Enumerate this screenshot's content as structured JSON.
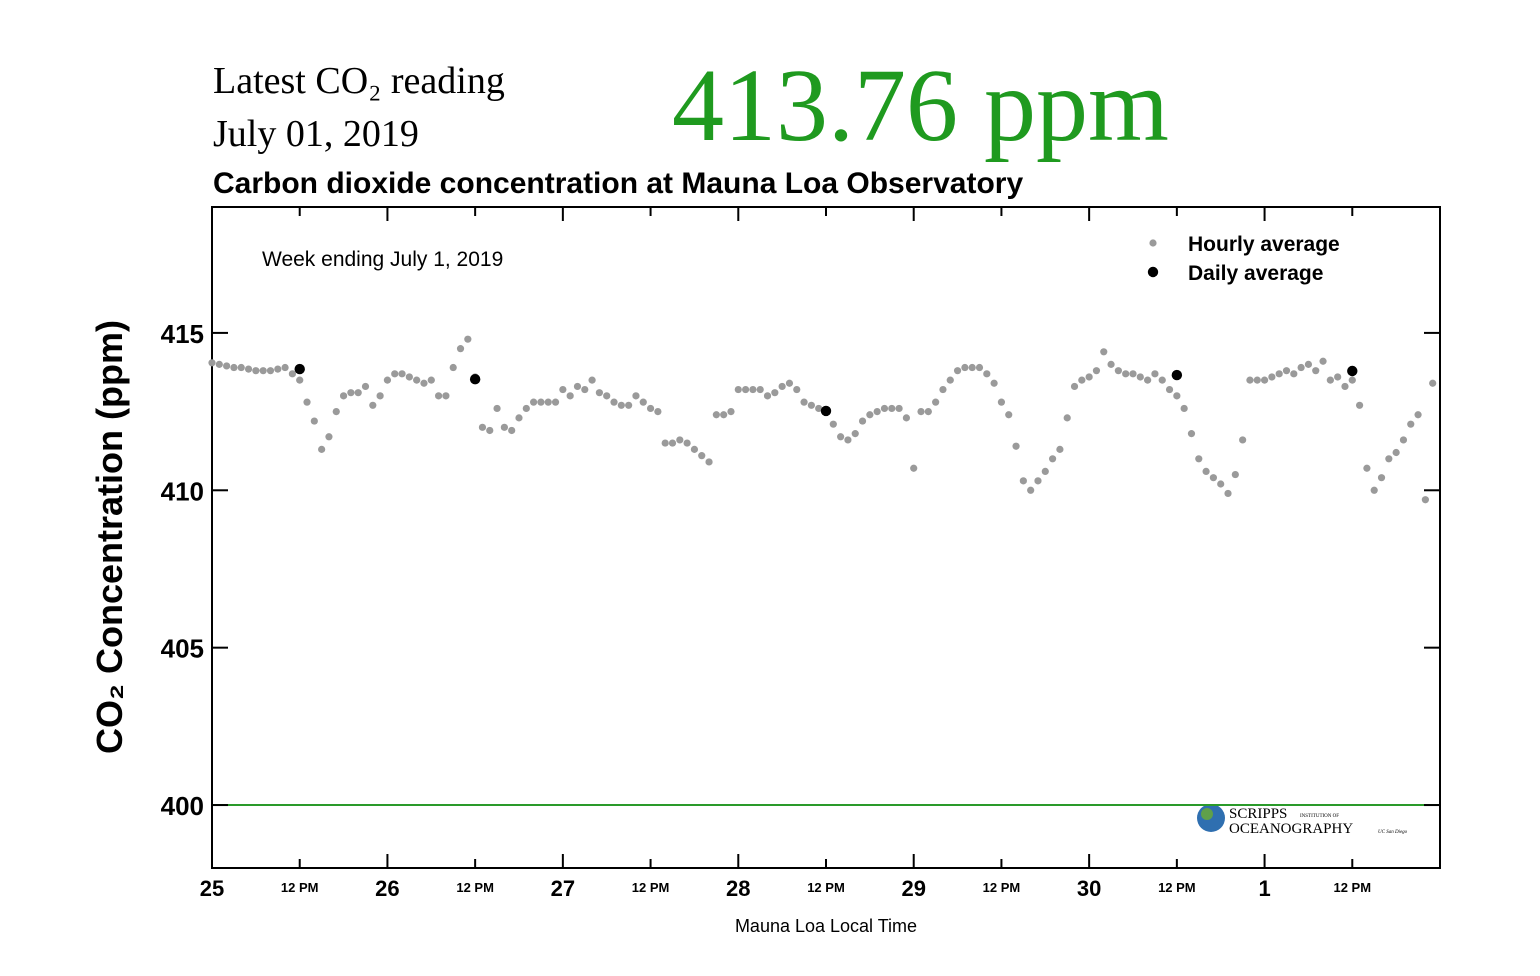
{
  "header": {
    "latest_label": "Latest CO₂ reading",
    "latest_date": "July 01, 2019",
    "latest_value": "413.76 ppm"
  },
  "chart_data": {
    "type": "scatter",
    "title": "Carbon dioxide concentration at Mauna Loa Observatory",
    "annotation": "Week ending July 1, 2019",
    "xlabel": "Mauna Loa Local Time",
    "ylabel": "CO₂ Concentration (ppm)",
    "xlim": [
      0,
      168
    ],
    "ylim": [
      398,
      419
    ],
    "xticks": [
      {
        "value": 0,
        "label": "25"
      },
      {
        "value": 12,
        "label": "12 PM"
      },
      {
        "value": 24,
        "label": "26"
      },
      {
        "value": 36,
        "label": "12 PM"
      },
      {
        "value": 48,
        "label": "27"
      },
      {
        "value": 60,
        "label": "12 PM"
      },
      {
        "value": 72,
        "label": "28"
      },
      {
        "value": 84,
        "label": "12 PM"
      },
      {
        "value": 96,
        "label": "29"
      },
      {
        "value": 108,
        "label": "12 PM"
      },
      {
        "value": 120,
        "label": "30"
      },
      {
        "value": 132,
        "label": "12 PM"
      },
      {
        "value": 144,
        "label": "1"
      },
      {
        "value": 156,
        "label": "12 PM"
      }
    ],
    "yticks": [
      400,
      405,
      410,
      415
    ],
    "legend": "upper right",
    "reference_line": {
      "value": 400,
      "color": "#2a9a2a"
    },
    "logo": [
      "SCRIPPS",
      "INSTITUTION OF",
      "OCEANOGRAPHY",
      "UC San Diego"
    ],
    "series": [
      {
        "name": "Hourly average",
        "color": "#9a9a9a",
        "x": [
          0,
          1,
          2,
          3,
          4,
          5,
          6,
          7,
          8,
          9,
          10,
          11,
          12,
          13,
          14,
          15,
          16,
          17,
          18,
          19,
          20,
          21,
          22,
          23,
          24,
          25,
          26,
          27,
          28,
          29,
          30,
          31,
          32,
          33,
          34,
          35,
          36,
          37,
          38,
          39,
          40,
          41,
          42,
          43,
          44,
          45,
          46,
          47,
          48,
          49,
          50,
          51,
          52,
          53,
          54,
          55,
          56,
          57,
          58,
          59,
          60,
          61,
          62,
          63,
          64,
          65,
          66,
          67,
          68,
          69,
          70,
          71,
          72,
          73,
          74,
          75,
          76,
          77,
          78,
          79,
          80,
          81,
          82,
          83,
          84,
          85,
          86,
          87,
          88,
          89,
          90,
          91,
          92,
          93,
          94,
          95,
          96,
          97,
          98,
          99,
          100,
          101,
          102,
          103,
          104,
          105,
          106,
          107,
          108,
          109,
          110,
          111,
          112,
          113,
          114,
          115,
          116,
          117,
          118,
          119,
          120,
          121,
          122,
          123,
          124,
          125,
          126,
          127,
          128,
          129,
          130,
          131,
          132,
          133,
          134,
          135,
          136,
          137,
          138,
          139,
          140,
          141,
          142,
          143,
          144,
          145,
          146,
          147,
          148,
          149,
          150,
          151,
          152,
          153,
          154,
          155,
          156,
          157,
          158,
          159,
          160,
          161,
          162,
          163,
          164,
          165,
          166,
          167
        ],
        "values": [
          414.05,
          414.0,
          413.95,
          413.9,
          413.9,
          413.85,
          413.8,
          413.8,
          413.8,
          413.85,
          413.9,
          413.7,
          413.5,
          412.8,
          412.2,
          411.3,
          411.7,
          412.5,
          413.0,
          413.1,
          413.1,
          413.3,
          412.7,
          413.0,
          413.5,
          413.7,
          413.7,
          413.6,
          413.5,
          413.4,
          413.5,
          413.0,
          413.0,
          413.9,
          414.5,
          414.8,
          413.6,
          412.0,
          411.9,
          412.6,
          412.0,
          411.9,
          412.3,
          412.6,
          412.8,
          412.8,
          412.8,
          412.8,
          413.2,
          413.0,
          413.3,
          413.2,
          413.5,
          413.1,
          413.0,
          412.8,
          412.7,
          412.7,
          413.0,
          412.8,
          412.6,
          412.5,
          411.5,
          411.5,
          411.6,
          411.5,
          411.3,
          411.1,
          410.9,
          412.4,
          412.4,
          412.5,
          413.2,
          413.2,
          413.2,
          413.2,
          413.0,
          413.1,
          413.3,
          413.4,
          413.2,
          412.8,
          412.7,
          412.6,
          412.5,
          412.1,
          411.7,
          411.6,
          411.8,
          412.2,
          412.4,
          412.5,
          412.6,
          412.6,
          412.6,
          412.3,
          410.7,
          412.5,
          412.5,
          412.8,
          413.2,
          413.5,
          413.8,
          413.9,
          413.9,
          413.9,
          413.7,
          413.4,
          412.8,
          412.4,
          411.4,
          410.3,
          410.0,
          410.3,
          410.6,
          411.0,
          411.3,
          412.3,
          413.3,
          413.5,
          413.6,
          413.8,
          414.4,
          414.0,
          413.8,
          413.7,
          413.7,
          413.6,
          413.5,
          413.7,
          413.5,
          413.2,
          413.0,
          412.6,
          411.8,
          411.0,
          410.6,
          410.4,
          410.2,
          409.9,
          410.5,
          411.6,
          413.5,
          413.5,
          413.5,
          413.6,
          413.7,
          413.8,
          413.7,
          413.9,
          414.0,
          413.8,
          414.1,
          413.5,
          413.6,
          413.3,
          413.5,
          412.7,
          410.7,
          410.0,
          410.4,
          411.0,
          411.2,
          411.6,
          412.1,
          412.4,
          409.7,
          413.4
        ]
      },
      {
        "name": "Daily average",
        "color": "#000000",
        "x": [
          12,
          36,
          84,
          132,
          156
        ],
        "values": [
          413.85,
          413.53,
          412.52,
          413.66,
          413.79
        ]
      }
    ]
  }
}
